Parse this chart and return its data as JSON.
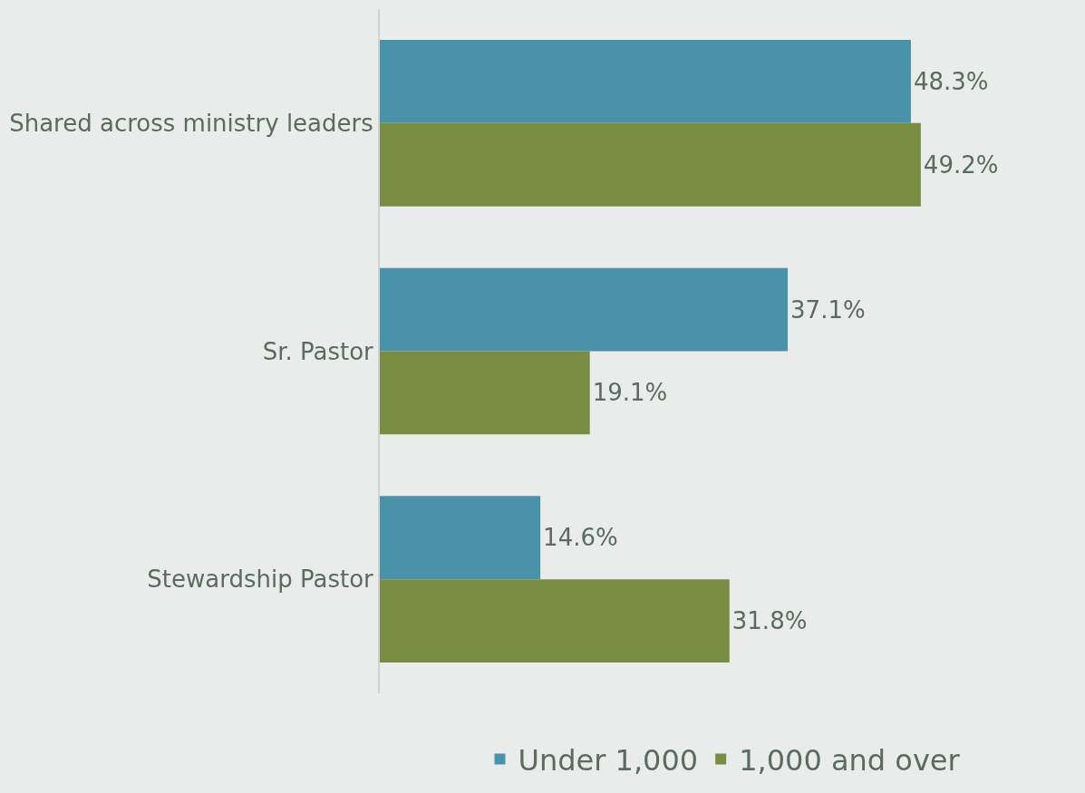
{
  "chart_data": {
    "type": "bar",
    "orientation": "horizontal",
    "categories": [
      "Shared across ministry leaders",
      "Sr. Pastor",
      "Stewardship Pastor"
    ],
    "series": [
      {
        "name": "Under 1,000",
        "color": "#4a92aa",
        "values": [
          48.3,
          37.1,
          14.6
        ],
        "value_labels": [
          "48.3%",
          "37.1%",
          "14.6%"
        ]
      },
      {
        "name": "1,000 and over",
        "color": "#788c42",
        "values": [
          49.2,
          19.1,
          31.8
        ],
        "value_labels": [
          "49.2%",
          "19.1%",
          "31.8%"
        ]
      }
    ],
    "legend": "bottom",
    "grid": false,
    "tick_labels": "y"
  }
}
